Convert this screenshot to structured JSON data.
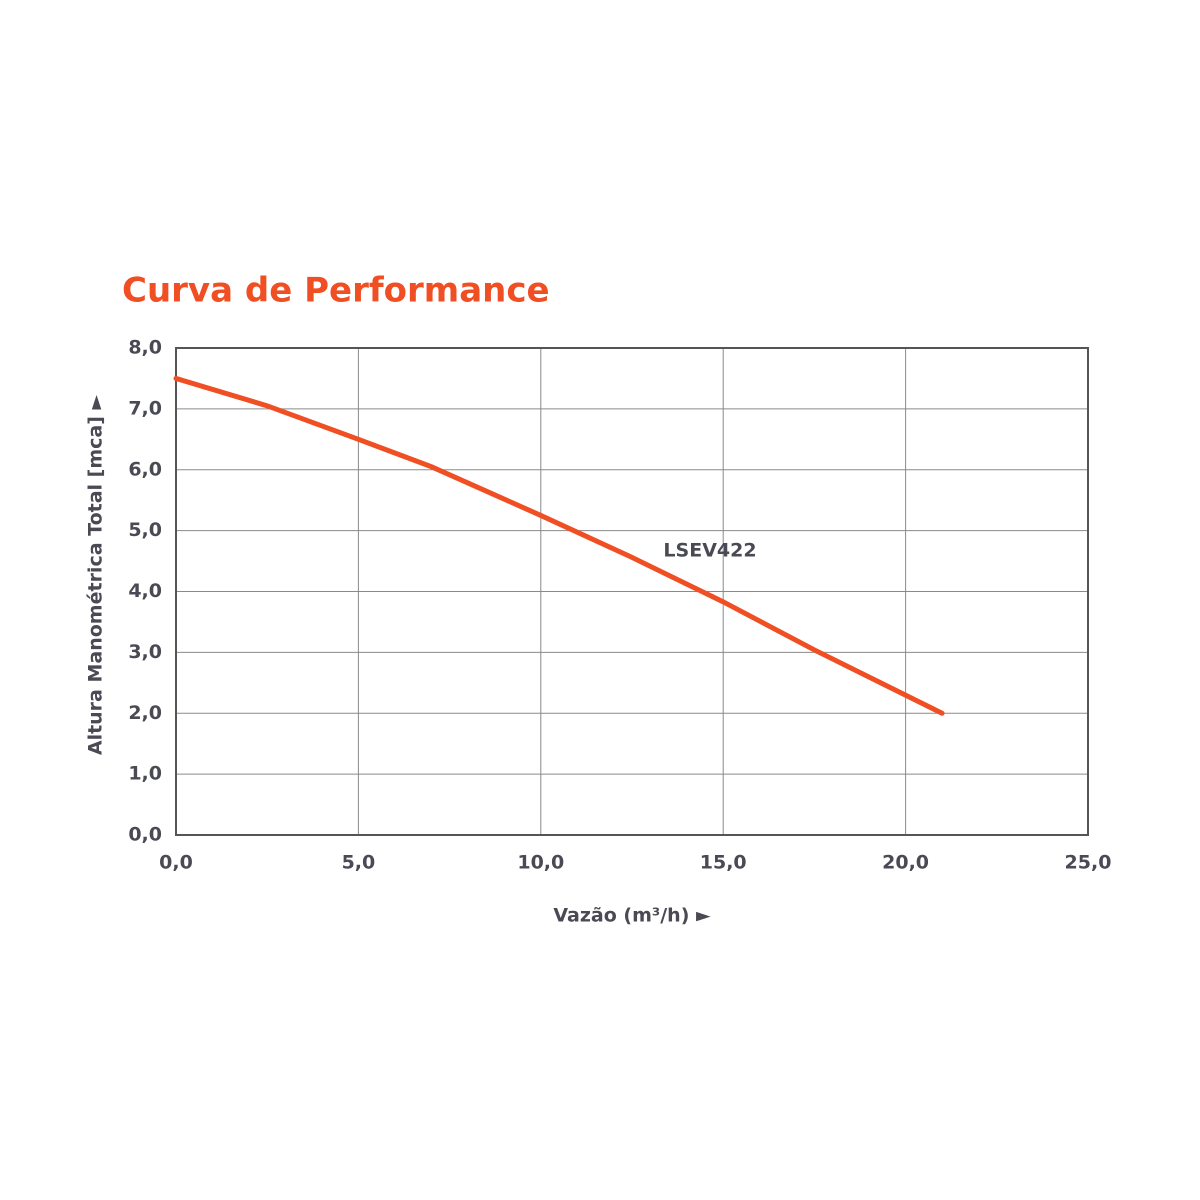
{
  "chart_data": {
    "type": "line",
    "title": "Curva de Performance",
    "x_label": "Vazão (m³/h) ►",
    "y_label": "Altura Manométrica Total [mca] ►",
    "x": [
      0,
      2.5,
      5,
      7,
      10,
      12.5,
      15,
      17.5,
      21
    ],
    "series": [
      {
        "name": "LSEV422",
        "color": "#f04e23",
        "values": [
          7.5,
          7.05,
          6.5,
          6.05,
          5.25,
          4.56,
          3.83,
          3.04,
          2.0
        ]
      }
    ],
    "xlim": [
      0,
      25
    ],
    "ylim": [
      0,
      8
    ],
    "xticks": [
      {
        "value": 0,
        "label": "0,0"
      },
      {
        "value": 5,
        "label": "5,0"
      },
      {
        "value": 10,
        "label": "10,0"
      },
      {
        "value": 15,
        "label": "15,0"
      },
      {
        "value": 20,
        "label": "20,0"
      },
      {
        "value": 25,
        "label": "25,0"
      }
    ],
    "yticks": [
      {
        "value": 0,
        "label": "0,0"
      },
      {
        "value": 1,
        "label": "1,0"
      },
      {
        "value": 2,
        "label": "2,0"
      },
      {
        "value": 3,
        "label": "3,0"
      },
      {
        "value": 4,
        "label": "4,0"
      },
      {
        "value": 5,
        "label": "5,0"
      },
      {
        "value": 6,
        "label": "6,0"
      },
      {
        "value": 7,
        "label": "7,0"
      },
      {
        "value": 8,
        "label": "8,0"
      }
    ],
    "grid": true
  }
}
